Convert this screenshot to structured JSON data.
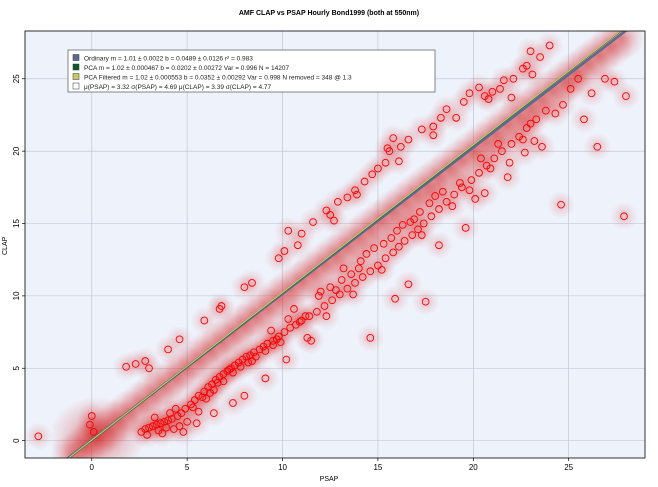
{
  "chart_data": {
    "type": "scatter",
    "title": "AMF CLAP vs PSAP Hourly Bond1999 (both at 550nm)",
    "xlabel": "PSAP",
    "ylabel": "CLAP",
    "xlim": [
      -3.5,
      29
    ],
    "ylim": [
      -1.2,
      28.3
    ],
    "x_ticks": [
      0,
      5,
      10,
      15,
      20,
      25
    ],
    "y_ticks": [
      0,
      5,
      10,
      15,
      20,
      25
    ],
    "tick_labels_x": [
      "0",
      "5",
      "10",
      "15",
      "20",
      "25"
    ],
    "tick_labels_y": [
      "0",
      "5",
      "10",
      "15",
      "20",
      "25"
    ],
    "grid": true,
    "legend_position": "top-left",
    "background_color": "#eef2fb",
    "density_color": "#d21e1e",
    "marker_color": "#ff0000",
    "legend": [
      {
        "text": "Ordinary  m = 1.01 ± 0.0022 b = 0.0489 ± 0.0126 r² = 0.983",
        "color": "#5b6b8f"
      },
      {
        "text": "PCA  m = 1.02 ± 0.000467 b = 0.0202 ± 0.00272 Var = 0.996 N = 14207",
        "color": "#0d5a2a"
      },
      {
        "text": "PCA Filtered  m = 1.02 ± 0.000553 b = 0.0352 ± 0.00292 Var = 0.998 N removed =  348 @  1.3",
        "color": "#c9c96a"
      },
      {
        "text": "μ(PSAP) = 3.32 σ(PSAP) = 4.69  μ(CLAP) = 3.39 σ(CLAP) = 4.77",
        "color": "#ffffff"
      }
    ],
    "fit_lines": [
      {
        "name": "Ordinary",
        "slope": 1.01,
        "intercept": 0.0489,
        "color": "#5b6b8f"
      },
      {
        "name": "PCA",
        "slope": 1.02,
        "intercept": 0.0202,
        "color": "#0d5a2a"
      },
      {
        "name": "PCA Filtered",
        "slope": 1.02,
        "intercept": 0.0352,
        "color": "#c9c96a"
      }
    ],
    "series": [
      {
        "points": [
          [
            -2.8,
            0.3
          ],
          [
            0,
            1.7
          ],
          [
            -0.1,
            1.1
          ],
          [
            0.1,
            0.6
          ],
          [
            1.8,
            5.1
          ],
          [
            2.3,
            5.3
          ],
          [
            2.8,
            5.5
          ],
          [
            3.0,
            5.0
          ],
          [
            4.6,
            7.0
          ],
          [
            4.0,
            6.3
          ],
          [
            5.9,
            8.3
          ],
          [
            6.8,
            9.3
          ],
          [
            6.7,
            9.1
          ],
          [
            8.0,
            10.6
          ],
          [
            8.4,
            10.9
          ],
          [
            9.8,
            12.6
          ],
          [
            10.1,
            13.1
          ],
          [
            10.8,
            13.5
          ],
          [
            11.0,
            14.3
          ],
          [
            10.3,
            14.5
          ],
          [
            11.6,
            15.1
          ],
          [
            12.3,
            15.9
          ],
          [
            12.5,
            15.6
          ],
          [
            12.9,
            16.5
          ],
          [
            13.4,
            16.8
          ],
          [
            13.8,
            17.3
          ],
          [
            14.3,
            17.9
          ],
          [
            15.0,
            18.8
          ],
          [
            15.4,
            19.2
          ],
          [
            15.6,
            20.0
          ],
          [
            15.8,
            20.9
          ],
          [
            16.2,
            20.3
          ],
          [
            16.6,
            20.8
          ],
          [
            17.3,
            21.5
          ],
          [
            17.9,
            21.1
          ],
          [
            18.3,
            22.3
          ],
          [
            18.6,
            22.9
          ],
          [
            19.5,
            23.4
          ],
          [
            19.8,
            24.0
          ],
          [
            20.3,
            24.4
          ],
          [
            20.6,
            23.8
          ],
          [
            21.0,
            24.1
          ],
          [
            21.4,
            24.3
          ],
          [
            22.1,
            25.0
          ],
          [
            22.8,
            25.9
          ],
          [
            23.0,
            26.9
          ],
          [
            23.5,
            26.5
          ],
          [
            24.0,
            27.3
          ],
          [
            23.1,
            25.3
          ],
          [
            22.6,
            25.7
          ],
          [
            22.0,
            23.7
          ],
          [
            21.6,
            24.9
          ],
          [
            20.8,
            23.6
          ],
          [
            19.1,
            22.3
          ],
          [
            17.9,
            21.7
          ],
          [
            16.1,
            19.3
          ],
          [
            15.5,
            20.2
          ],
          [
            14.7,
            18.4
          ],
          [
            13.9,
            17.0
          ],
          [
            12.7,
            15.2
          ],
          [
            2.6,
            0.6
          ],
          [
            2.8,
            0.8
          ],
          [
            3.0,
            0.9
          ],
          [
            3.2,
            1.0
          ],
          [
            3.4,
            1.1
          ],
          [
            3.6,
            1.2
          ],
          [
            3.8,
            1.3
          ],
          [
            4.0,
            1.4
          ],
          [
            4.2,
            1.5
          ],
          [
            4.5,
            1.7
          ],
          [
            4.7,
            1.9
          ],
          [
            4.9,
            2.2
          ],
          [
            5.2,
            2.5
          ],
          [
            5.4,
            2.8
          ],
          [
            5.6,
            3.1
          ],
          [
            5.9,
            3.4
          ],
          [
            6.1,
            3.7
          ],
          [
            6.3,
            3.9
          ],
          [
            6.5,
            4.2
          ],
          [
            6.7,
            4.4
          ],
          [
            6.9,
            4.6
          ],
          [
            7.1,
            4.8
          ],
          [
            7.3,
            5.0
          ],
          [
            7.5,
            5.2
          ],
          [
            7.7,
            5.4
          ],
          [
            7.9,
            5.6
          ],
          [
            8.1,
            5.8
          ],
          [
            8.3,
            5.9
          ],
          [
            8.5,
            6.1
          ],
          [
            8.8,
            6.3
          ],
          [
            9.0,
            6.5
          ],
          [
            9.2,
            6.7
          ],
          [
            9.5,
            6.9
          ],
          [
            9.8,
            7.2
          ],
          [
            10.1,
            7.5
          ],
          [
            10.4,
            7.8
          ],
          [
            10.7,
            8.0
          ],
          [
            11.0,
            8.3
          ],
          [
            11.4,
            8.6
          ],
          [
            11.8,
            8.9
          ],
          [
            12.2,
            9.3
          ],
          [
            12.6,
            9.7
          ],
          [
            13.0,
            10.1
          ],
          [
            13.4,
            10.5
          ],
          [
            13.8,
            10.9
          ],
          [
            14.2,
            11.3
          ],
          [
            14.6,
            11.7
          ],
          [
            15.0,
            12.1
          ],
          [
            15.4,
            12.6
          ],
          [
            15.8,
            13.0
          ],
          [
            16.1,
            13.4
          ],
          [
            16.4,
            13.8
          ],
          [
            16.8,
            14.2
          ],
          [
            17.1,
            14.6
          ],
          [
            17.4,
            15.0
          ],
          [
            17.8,
            15.5
          ],
          [
            18.2,
            16.0
          ],
          [
            18.6,
            16.5
          ],
          [
            19.0,
            17.0
          ],
          [
            19.4,
            17.5
          ],
          [
            19.9,
            18.0
          ],
          [
            20.3,
            18.5
          ],
          [
            20.7,
            19.0
          ],
          [
            21.1,
            19.5
          ],
          [
            21.5,
            20.0
          ],
          [
            22.0,
            20.5
          ],
          [
            22.4,
            21.0
          ],
          [
            22.8,
            21.6
          ],
          [
            23.3,
            22.2
          ],
          [
            23.8,
            22.8
          ],
          [
            2.9,
            0.4
          ],
          [
            3.5,
            0.7
          ],
          [
            3.9,
            0.9
          ],
          [
            4.3,
            0.8
          ],
          [
            4.6,
            1.0
          ],
          [
            3.7,
            0.5
          ],
          [
            4.1,
            1.9
          ],
          [
            4.4,
            2.2
          ],
          [
            3.3,
            1.6
          ],
          [
            5.0,
            1.3
          ],
          [
            5.6,
            2.0
          ],
          [
            6.0,
            2.9
          ],
          [
            6.4,
            3.5
          ],
          [
            6.9,
            4.1
          ],
          [
            7.4,
            4.7
          ],
          [
            7.8,
            5.1
          ],
          [
            8.2,
            5.4
          ],
          [
            8.6,
            5.8
          ],
          [
            9.1,
            6.2
          ],
          [
            9.5,
            6.6
          ],
          [
            9.9,
            6.8
          ],
          [
            10.3,
            8.4
          ],
          [
            10.9,
            8.2
          ],
          [
            11.3,
            7.1
          ],
          [
            11.9,
            10.0
          ],
          [
            12.5,
            10.6
          ],
          [
            13.1,
            11.1
          ],
          [
            13.6,
            11.5
          ],
          [
            14.1,
            12.4
          ],
          [
            14.8,
            13.3
          ],
          [
            15.2,
            11.8
          ],
          [
            15.7,
            14.0
          ],
          [
            16.3,
            14.9
          ],
          [
            16.9,
            15.3
          ],
          [
            17.3,
            14.2
          ],
          [
            17.7,
            16.4
          ],
          [
            18.4,
            17.2
          ],
          [
            18.9,
            16.2
          ],
          [
            19.3,
            17.8
          ],
          [
            19.8,
            17.3
          ],
          [
            20.4,
            19.5
          ],
          [
            20.9,
            18.8
          ],
          [
            21.3,
            20.5
          ],
          [
            21.9,
            19.2
          ],
          [
            22.6,
            20.8
          ],
          [
            23.0,
            21.9
          ],
          [
            23.6,
            20.3
          ],
          [
            24.3,
            22.6
          ],
          [
            24.7,
            23.2
          ],
          [
            25.1,
            24.3
          ],
          [
            25.5,
            25.0
          ],
          [
            26.2,
            24.0
          ],
          [
            26.9,
            25.0
          ],
          [
            27.4,
            24.8
          ],
          [
            28.0,
            23.8
          ],
          [
            27.9,
            15.5
          ],
          [
            24.6,
            16.3
          ],
          [
            20.1,
            16.7
          ],
          [
            17.5,
            9.6
          ],
          [
            14.6,
            7.1
          ],
          [
            25.8,
            22.2
          ],
          [
            26.5,
            20.3
          ],
          [
            23.2,
            20.7
          ],
          [
            22.7,
            19.9
          ],
          [
            21.8,
            18.2
          ],
          [
            20.6,
            17.1
          ],
          [
            19.6,
            14.7
          ],
          [
            18.2,
            13.5
          ],
          [
            16.6,
            10.8
          ],
          [
            15.9,
            9.8
          ],
          [
            13.7,
            10.1
          ],
          [
            12.3,
            8.6
          ],
          [
            11.5,
            6.9
          ],
          [
            10.2,
            5.6
          ],
          [
            9.1,
            4.3
          ],
          [
            8.0,
            3.1
          ],
          [
            7.4,
            2.6
          ],
          [
            6.4,
            1.9
          ],
          [
            5.5,
            1.2
          ],
          [
            4.8,
            0.6
          ],
          [
            9.4,
            7.6
          ],
          [
            10.6,
            9.1
          ],
          [
            12.0,
            10.3
          ],
          [
            13.2,
            11.9
          ],
          [
            14.4,
            12.9
          ],
          [
            15.3,
            13.6
          ],
          [
            16.0,
            14.5
          ],
          [
            16.7,
            15.1
          ],
          [
            17.2,
            15.8
          ],
          [
            18.0,
            16.9
          ],
          [
            7.2,
            4.9
          ],
          [
            8.4,
            5.5
          ],
          [
            9.7,
            7.0
          ],
          [
            11.2,
            8.6
          ],
          [
            12.8,
            10.4
          ],
          [
            14.0,
            11.9
          ],
          [
            6.6,
            4.0
          ],
          [
            5.8,
            3.0
          ],
          [
            5.3,
            2.3
          ],
          [
            6.2,
            3.3
          ]
        ]
      }
    ]
  }
}
